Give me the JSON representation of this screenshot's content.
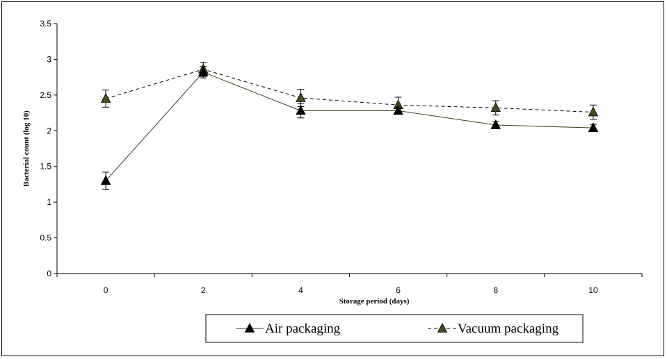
{
  "chart_data": {
    "type": "line",
    "title": "",
    "xlabel": "Storage period (days)",
    "ylabel": "Bacterial count (log 10)",
    "x": [
      0,
      2,
      4,
      6,
      8,
      10
    ],
    "x_tick_labels": [
      "0",
      "2",
      "4",
      "6",
      "8",
      "10"
    ],
    "ylim": [
      0,
      3.5
    ],
    "y_ticks": [
      0,
      0.5,
      1,
      1.5,
      2,
      2.5,
      3,
      3.5
    ],
    "y_tick_labels": [
      "0",
      "0.5",
      "1",
      "1.5",
      "2",
      "2.5",
      "3",
      "3.5"
    ],
    "grid": false,
    "legend_position": "bottom",
    "series": [
      {
        "name": "Air packaging",
        "line_style": "solid",
        "color": "#3a3a18",
        "marker": "triangle",
        "marker_color": "#000000",
        "values": [
          1.3,
          2.82,
          2.28,
          2.28,
          2.08,
          2.04
        ],
        "error": [
          0.12,
          0.08,
          0.1,
          0.04,
          0.05,
          0.05
        ]
      },
      {
        "name": "Vacuum packaging",
        "line_style": "dashed",
        "color": "#000000",
        "marker": "triangle",
        "marker_color": "#4a4a1a",
        "values": [
          2.45,
          2.86,
          2.46,
          2.36,
          2.32,
          2.26
        ],
        "error": [
          0.12,
          0.1,
          0.12,
          0.11,
          0.1,
          0.1
        ]
      }
    ]
  }
}
